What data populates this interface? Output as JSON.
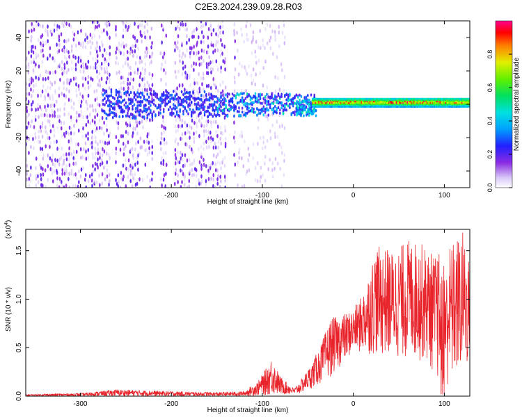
{
  "title": "C2E3.2024.239.09.28.R03",
  "chart_data": [
    {
      "type": "heatmap",
      "xlabel": "Height of straight line (km)",
      "ylabel": "Frequency (Hz)",
      "xlim": [
        -360,
        128
      ],
      "ylim": [
        -50,
        50
      ],
      "x_ticks": [
        -300,
        -200,
        -100,
        0,
        100
      ],
      "y_ticks": [
        -40,
        -20,
        0,
        20,
        40
      ],
      "colorbar": {
        "label": "Normalized spectral amplitude",
        "range": [
          0,
          1
        ],
        "ticks": [
          "0.0",
          "0.2",
          "0.4",
          "0.6",
          "0.8"
        ],
        "colormap": "rainbow (white-violet-blue-cyan-green-yellow-red-magenta)"
      },
      "regions": [
        {
          "x_range": [
            -360,
            -270
          ],
          "freq_range": [
            -50,
            50
          ],
          "amplitude": "low (0.1-0.2)",
          "pattern": "scattered vertical streaks"
        },
        {
          "x_range": [
            -270,
            -130
          ],
          "freq_range": [
            -50,
            50
          ],
          "amplitude": "low (0.1-0.2)",
          "pattern": "scattered streaks with gaps"
        },
        {
          "x_range": [
            -130,
            -75
          ],
          "freq_range": [
            -48,
            48
          ],
          "amplitude": "very low (<0.1)",
          "pattern": "faint scatter"
        },
        {
          "x_range": [
            -275,
            -45
          ],
          "freq_range": [
            -10,
            10
          ],
          "amplitude": "0.2-0.5",
          "pattern": "dense band around 0 Hz"
        },
        {
          "x_range": [
            -45,
            128
          ],
          "freq_range": [
            -2,
            4
          ],
          "amplitude": "0.5-1.0",
          "pattern": "narrow continuous band near 1 Hz"
        }
      ]
    },
    {
      "type": "line",
      "xlabel": "Height of straight line (km)",
      "ylabel": "SNR (10 * v/v)",
      "y_multiplier": "(x10^4)",
      "xlim": [
        -360,
        128
      ],
      "ylim": [
        0,
        1.72
      ],
      "x_ticks": [
        -300,
        -200,
        -100,
        0,
        100
      ],
      "y_ticks": [
        "0.0",
        "0.5",
        "1.0",
        "1.5"
      ],
      "series_color": "#e8232a",
      "envelope": [
        {
          "x": -360,
          "y": 0.02
        },
        {
          "x": -300,
          "y": 0.03
        },
        {
          "x": -260,
          "y": 0.07
        },
        {
          "x": -200,
          "y": 0.05
        },
        {
          "x": -150,
          "y": 0.04
        },
        {
          "x": -120,
          "y": 0.05
        },
        {
          "x": -105,
          "y": 0.15
        },
        {
          "x": -95,
          "y": 0.3
        },
        {
          "x": -90,
          "y": 0.4
        },
        {
          "x": -80,
          "y": 0.2
        },
        {
          "x": -65,
          "y": 0.08
        },
        {
          "x": -55,
          "y": 0.2
        },
        {
          "x": -45,
          "y": 0.35
        },
        {
          "x": -35,
          "y": 0.55
        },
        {
          "x": -25,
          "y": 0.8
        },
        {
          "x": -10,
          "y": 0.85
        },
        {
          "x": 0,
          "y": 0.9
        },
        {
          "x": 10,
          "y": 1.05
        },
        {
          "x": 25,
          "y": 1.55
        },
        {
          "x": 45,
          "y": 1.5
        },
        {
          "x": 60,
          "y": 1.62
        },
        {
          "x": 75,
          "y": 1.58
        },
        {
          "x": 90,
          "y": 1.45
        },
        {
          "x": 110,
          "y": 1.6
        },
        {
          "x": 120,
          "y": 1.72
        },
        {
          "x": 128,
          "y": 1.4
        }
      ],
      "baseline": [
        {
          "x": -360,
          "y": 0.0
        },
        {
          "x": -120,
          "y": 0.0
        },
        {
          "x": -60,
          "y": 0.02
        },
        {
          "x": -30,
          "y": 0.15
        },
        {
          "x": 0,
          "y": 0.45
        },
        {
          "x": 40,
          "y": 0.4
        },
        {
          "x": 80,
          "y": 0.35
        },
        {
          "x": 100,
          "y": 0.05
        },
        {
          "x": 128,
          "y": 0.3
        }
      ]
    }
  ]
}
